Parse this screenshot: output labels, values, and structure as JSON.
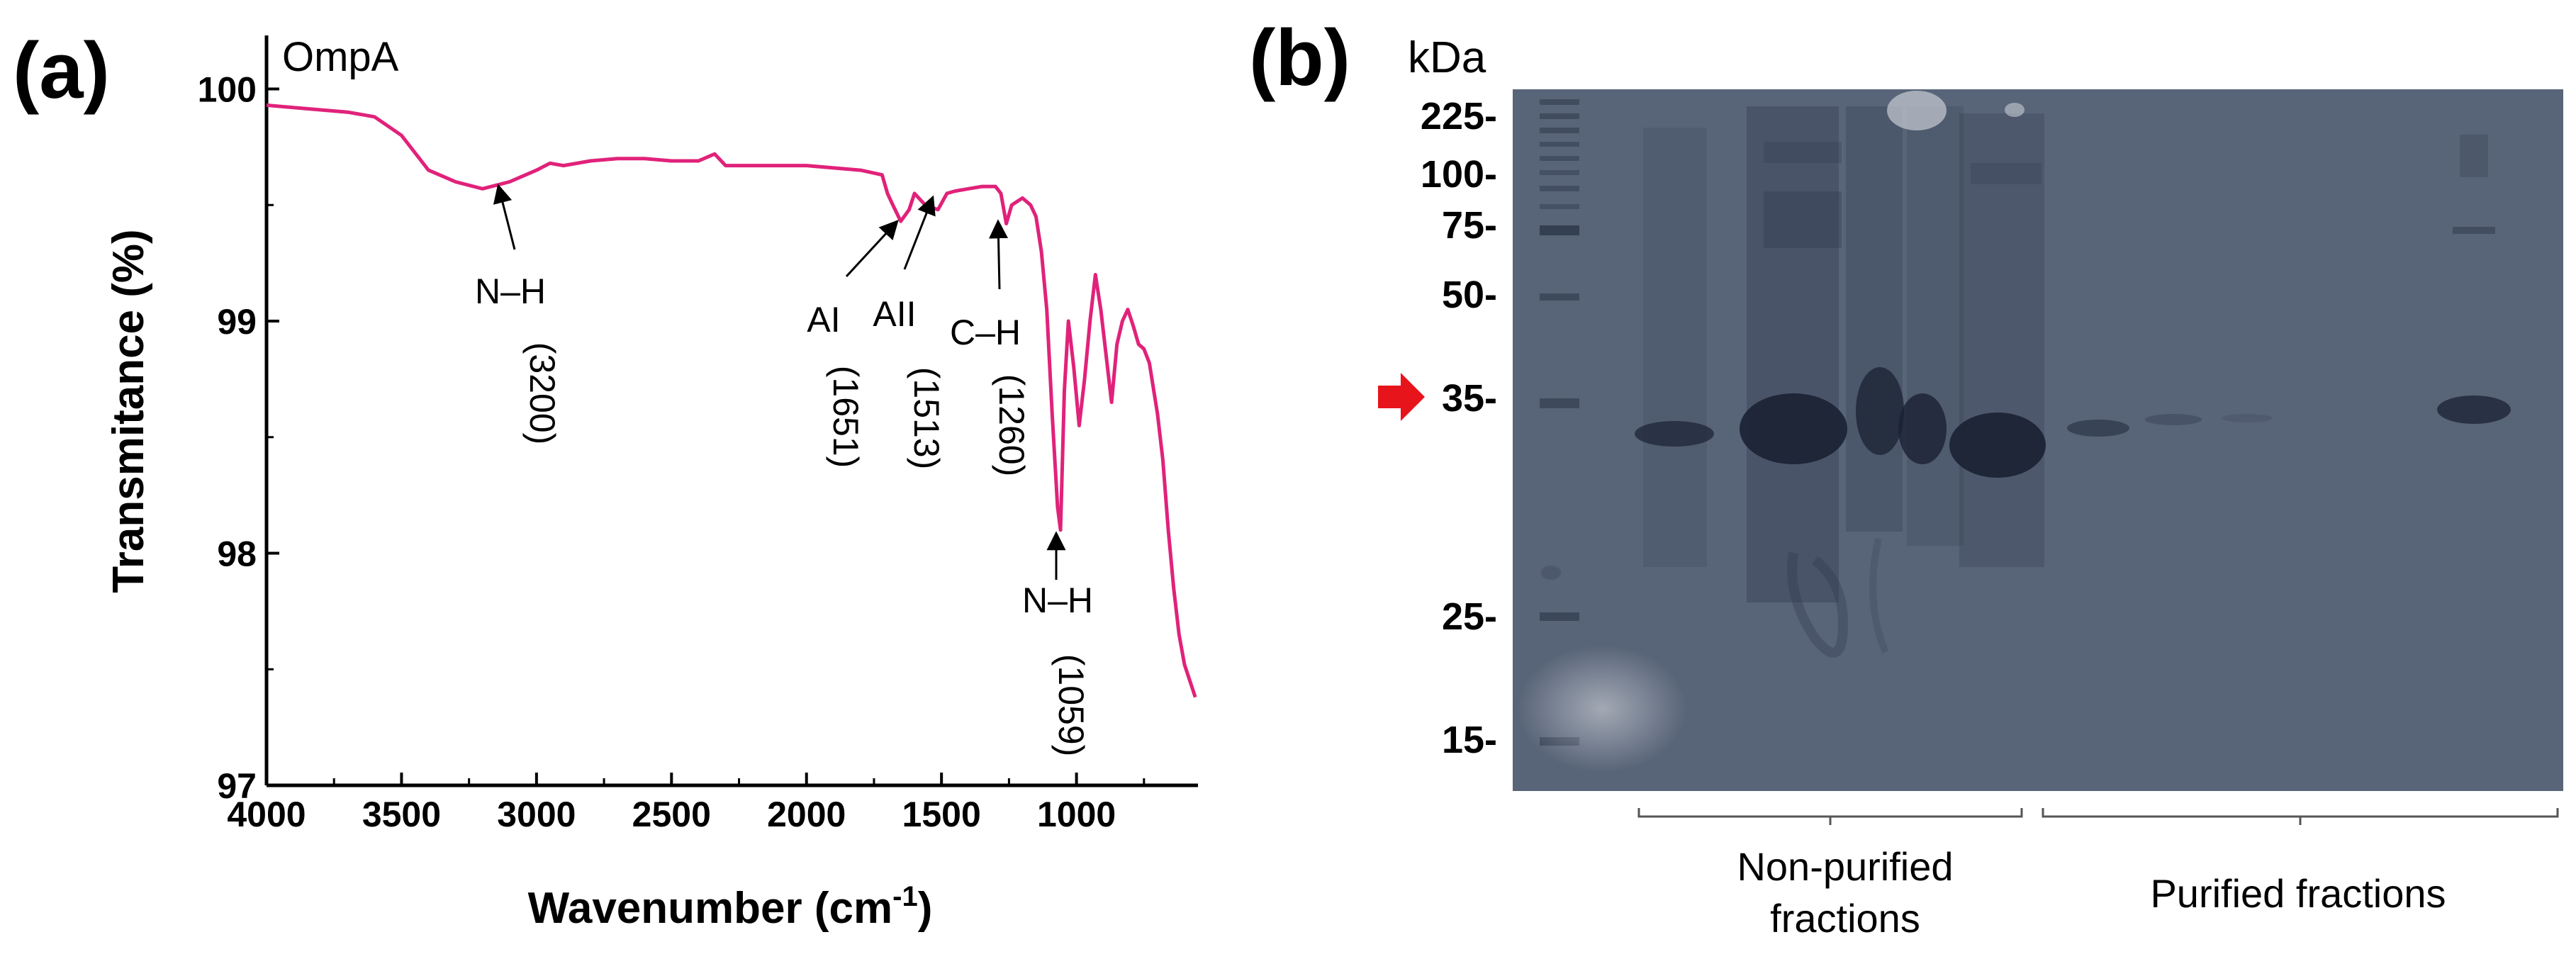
{
  "panel_a": {
    "letter": "(a)",
    "sample_label": "OmpA",
    "trace_color": "#e0227a"
  },
  "panel_b": {
    "letter": "(b)",
    "unit_label": "kDa",
    "marker_labels": [
      "225-",
      "100-",
      "75-",
      "50-",
      "35-",
      "25-",
      "15-"
    ],
    "group_labels": {
      "non_purified_line1": "Non-purified",
      "non_purified_line2": "fractions",
      "purified": "Purified fractions"
    },
    "arrow_color": "#e8141b",
    "gel_color": "#5e6b80"
  },
  "chart_data": [
    {
      "type": "line",
      "title": "OmpA",
      "xlabel": "Wavenumber (cm⁻¹)",
      "xlabel_main": "Wavenumber (cm",
      "xlabel_sup": "-1",
      "xlabel_close": ")",
      "ylabel": "Transmitance (%)",
      "xlim": [
        4000,
        550
      ],
      "ylim": [
        97,
        100.2
      ],
      "x_ticks": [
        4000,
        3500,
        3000,
        2500,
        2000,
        1500,
        1000
      ],
      "x_tick_labels": [
        "4000",
        "3500",
        "3000",
        "2500",
        "2000",
        "1500",
        "1000"
      ],
      "y_ticks": [
        97,
        98,
        99,
        100
      ],
      "y_tick_labels": [
        "97",
        "98",
        "99",
        "100"
      ],
      "series": [
        {
          "name": "OmpA",
          "x": [
            4000,
            3900,
            3800,
            3700,
            3600,
            3500,
            3400,
            3300,
            3200,
            3100,
            3000,
            2950,
            2900,
            2800,
            2700,
            2600,
            2500,
            2400,
            2340,
            2300,
            2200,
            2100,
            2000,
            1900,
            1800,
            1720,
            1700,
            1680,
            1651,
            1620,
            1600,
            1560,
            1513,
            1480,
            1450,
            1400,
            1350,
            1300,
            1280,
            1260,
            1240,
            1200,
            1170,
            1150,
            1130,
            1110,
            1090,
            1070,
            1059,
            1045,
            1030,
            1010,
            990,
            970,
            950,
            930,
            910,
            890,
            870,
            850,
            830,
            810,
            790,
            770,
            750,
            730,
            700,
            680,
            660,
            640,
            620,
            600,
            580,
            560
          ],
          "y": [
            99.93,
            99.92,
            99.91,
            99.9,
            99.88,
            99.8,
            99.65,
            99.6,
            99.57,
            99.6,
            99.65,
            99.68,
            99.67,
            99.69,
            99.7,
            99.7,
            99.69,
            99.69,
            99.72,
            99.67,
            99.67,
            99.67,
            99.67,
            99.66,
            99.65,
            99.63,
            99.55,
            99.5,
            99.43,
            99.48,
            99.55,
            99.5,
            99.48,
            99.55,
            99.56,
            99.57,
            99.58,
            99.58,
            99.55,
            99.42,
            99.5,
            99.53,
            99.5,
            99.45,
            99.3,
            99.05,
            98.6,
            98.2,
            98.1,
            98.7,
            99.0,
            98.8,
            98.55,
            98.75,
            99.0,
            99.2,
            99.05,
            98.85,
            98.65,
            98.9,
            99.0,
            99.05,
            98.98,
            98.9,
            98.88,
            98.82,
            98.6,
            98.4,
            98.1,
            97.85,
            97.65,
            97.52,
            97.45,
            97.38
          ]
        }
      ],
      "annotations": [
        {
          "label": "N–H",
          "wavenumber": "(3200)",
          "at_x": 3200
        },
        {
          "label": "AI",
          "wavenumber": "(1651)",
          "at_x": 1651
        },
        {
          "label": "AII",
          "wavenumber": "(1513)",
          "at_x": 1513
        },
        {
          "label": "C–H",
          "wavenumber": "(1260)",
          "at_x": 1260
        },
        {
          "label": "N–H",
          "wavenumber": "(1059)",
          "at_x": 1059
        }
      ]
    }
  ]
}
